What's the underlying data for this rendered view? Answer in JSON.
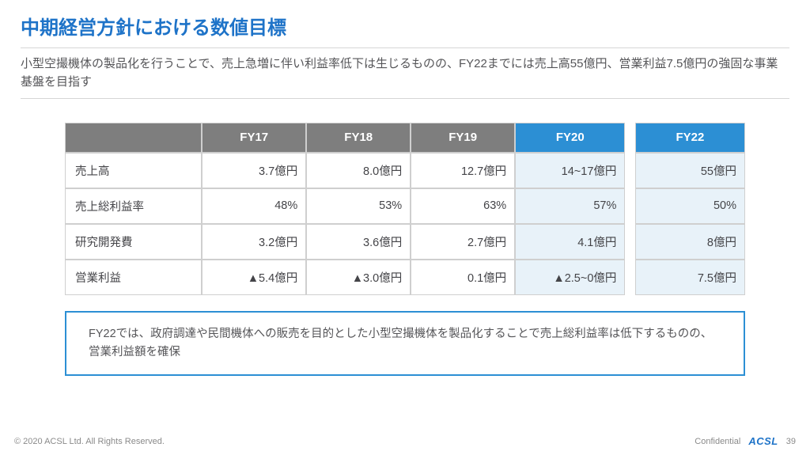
{
  "title": "中期経営方針における数値目標",
  "subtitle": "小型空撮機体の製品化を行うことで、売上急増に伴い利益率低下は生じるものの、FY22までには売上高55億円、営業利益7.5億円の強固な事業基盤を目指す",
  "table": {
    "headers": {
      "c1": "FY17",
      "c2": "FY18",
      "c3": "FY19",
      "c4": "FY20",
      "c5": "FY22"
    },
    "rows": [
      {
        "label": "売上高",
        "c1": "3.7億円",
        "c2": "8.0億円",
        "c3": "12.7億円",
        "c4": "14~17億円",
        "c5": "55億円"
      },
      {
        "label": "売上総利益率",
        "c1": "48%",
        "c2": "53%",
        "c3": "63%",
        "c4": "57%",
        "c5": "50%"
      },
      {
        "label": "研究開発費",
        "c1": "3.2億円",
        "c2": "3.6億円",
        "c3": "2.7億円",
        "c4": "4.1億円",
        "c5": "8億円"
      },
      {
        "label": "営業利益",
        "c1": "▲5.4億円",
        "c2": "▲3.0億円",
        "c3": "0.1億円",
        "c4": "▲2.5~0億円",
        "c5": "7.5億円"
      }
    ],
    "colors": {
      "header_gray_bg": "#7e7e7e",
      "header_blue_bg": "#2c8fd4",
      "header_text": "#ffffff",
      "cell_blue_bg": "#e8f2f9",
      "border": "#cfcfcf",
      "body_text": "#444448"
    }
  },
  "callout": "FY22では、政府調達や民間機体への販売を目的とした小型空撮機体を製品化することで売上総利益率は低下するものの、営業利益額を確保",
  "footer": {
    "copyright": "© 2020 ACSL Ltd. All Rights Reserved.",
    "confidential": "Confidential",
    "logo": "ACSL",
    "page": "39"
  },
  "colors": {
    "title": "#1e73c8",
    "subtitle": "#555558",
    "callout_border": "#2c8fd4",
    "divider": "#d6d6d6",
    "background": "#ffffff"
  }
}
